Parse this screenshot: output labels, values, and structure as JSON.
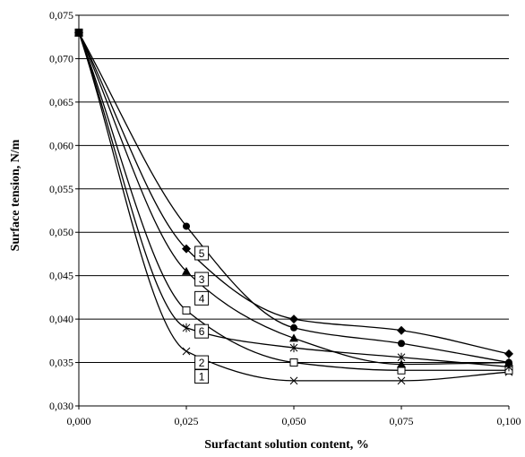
{
  "chart_data": {
    "type": "line",
    "title": "",
    "xlabel": "Surfactant solution content, %",
    "ylabel": "Surface tension, N/m",
    "xlim": [
      0,
      0.1
    ],
    "ylim": [
      0.03,
      0.075
    ],
    "x_ticks": [
      "0,000",
      "0,025",
      "0,050",
      "0,075",
      "0,100"
    ],
    "y_ticks": [
      "0,030",
      "0,035",
      "0,040",
      "0,045",
      "0,050",
      "0,055",
      "0,060",
      "0,065",
      "0,070",
      "0,075"
    ],
    "grid": "horizontal",
    "legend": "inline numbered labels",
    "x": [
      0,
      0.025,
      0.05,
      0.075,
      0.1
    ],
    "series": [
      {
        "label": "1",
        "marker": "x",
        "values": [
          0.073,
          0.0363,
          0.0329,
          0.0329,
          0.0339
        ],
        "label_at": [
          0.027,
          0.0334
        ]
      },
      {
        "label": "2",
        "marker": "square-open",
        "values": [
          0.073,
          0.041,
          0.035,
          0.0341,
          0.0341
        ],
        "label_at": [
          0.027,
          0.035
        ]
      },
      {
        "label": "6",
        "marker": "star",
        "values": [
          0.073,
          0.039,
          0.0367,
          0.0356,
          0.0345
        ],
        "label_at": [
          0.027,
          0.0386
        ]
      },
      {
        "label": "4",
        "marker": "triangle",
        "values": [
          0.073,
          0.0455,
          0.0378,
          0.0348,
          0.035
        ],
        "label_at": [
          0.027,
          0.0424
        ]
      },
      {
        "label": "3",
        "marker": "circle",
        "values": [
          0.073,
          0.0507,
          0.039,
          0.0372,
          0.035
        ],
        "label_at": [
          0.027,
          0.0446
        ]
      },
      {
        "label": "5",
        "marker": "diamond",
        "values": [
          0.073,
          0.0481,
          0.04,
          0.0387,
          0.036
        ],
        "label_at": [
          0.027,
          0.0476
        ]
      }
    ]
  }
}
